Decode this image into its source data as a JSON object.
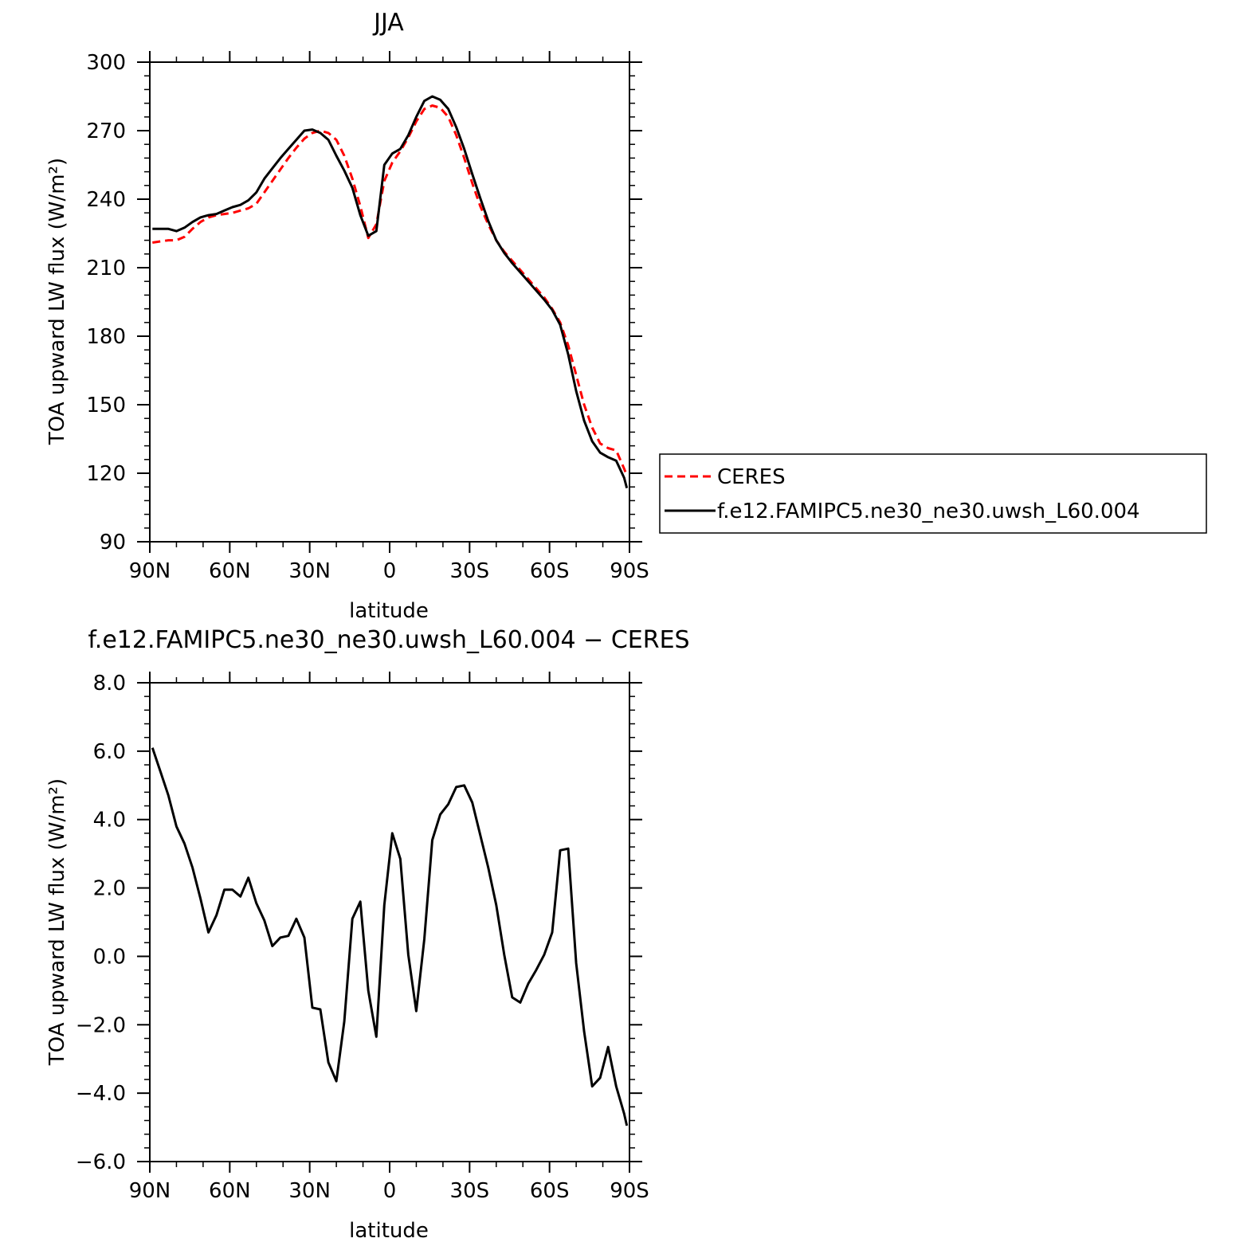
{
  "colors": {
    "ceres": "#ff0000",
    "model": "#000000",
    "axis": "#000000"
  },
  "chart_data": [
    {
      "type": "line",
      "title": "JJA",
      "xlabel": "latitude",
      "ylabel": "TOA upward LW flux (W/m²)",
      "x_range": [
        90,
        -90
      ],
      "xticks": [
        90,
        60,
        30,
        0,
        -30,
        -60,
        -90
      ],
      "xtick_labels": [
        "90N",
        "60N",
        "30N",
        "0",
        "30S",
        "60S",
        "90S"
      ],
      "ylim": [
        90,
        300
      ],
      "yticks": [
        90,
        120,
        150,
        180,
        210,
        240,
        270,
        300
      ],
      "ytick_labels": [
        "90",
        "120",
        "150",
        "180",
        "210",
        "240",
        "270",
        "300"
      ],
      "legend": {
        "position": "right",
        "entries": [
          "CERES",
          "f.e12.FAMIPC5.ne30_ne30.uwsh_L60.004"
        ]
      },
      "series": [
        {
          "name": "CERES",
          "style": "dashed",
          "x": [
            89,
            86,
            83,
            80,
            77,
            74,
            71,
            68,
            65,
            62,
            59,
            56,
            53,
            50,
            47,
            44,
            41,
            38,
            35,
            32,
            29,
            26,
            23,
            20,
            17,
            14,
            11,
            8,
            5,
            2,
            -1,
            -4,
            -7,
            -10,
            -13,
            -16,
            -19,
            -22,
            -25,
            -28,
            -31,
            -34,
            -37,
            -40,
            -43,
            -46,
            -49,
            -52,
            -55,
            -58,
            -61,
            -64,
            -67,
            -70,
            -73,
            -76,
            -79,
            -82,
            -85,
            -88,
            -89
          ],
          "values": [
            221,
            221.5,
            222,
            222,
            223.5,
            227,
            230,
            232,
            233,
            233.5,
            234,
            235,
            236,
            238,
            243,
            248,
            253,
            258,
            262.5,
            266.5,
            269,
            270,
            269,
            266,
            259,
            249,
            237,
            223,
            229,
            248,
            256,
            261,
            267,
            274,
            279.5,
            281,
            280,
            276,
            268,
            258,
            247,
            237,
            229,
            222,
            217,
            213,
            209,
            205,
            201,
            197,
            192,
            186,
            176,
            163,
            150,
            140,
            133,
            131,
            130,
            122,
            119
          ]
        },
        {
          "name": "f.e12.FAMIPC5.ne30_ne30.uwsh_L60.004",
          "style": "solid",
          "x": [
            89,
            86,
            83,
            80,
            77,
            74,
            71,
            68,
            65,
            62,
            59,
            56,
            53,
            50,
            47,
            44,
            41,
            38,
            35,
            32,
            29,
            26,
            23,
            20,
            17,
            14,
            11,
            8,
            5,
            2,
            -1,
            -4,
            -7,
            -10,
            -13,
            -16,
            -19,
            -22,
            -25,
            -28,
            -31,
            -34,
            -37,
            -40,
            -43,
            -46,
            -49,
            -52,
            -55,
            -58,
            -61,
            -64,
            -67,
            -70,
            -73,
            -76,
            -79,
            -82,
            -85,
            -88,
            -89
          ],
          "values": [
            227,
            227,
            227,
            226,
            227.5,
            230,
            232,
            233,
            233.5,
            235,
            236.5,
            237.5,
            239.5,
            243,
            249,
            253.5,
            258,
            262,
            266,
            270,
            270.5,
            269,
            266,
            259,
            252.5,
            245,
            233,
            224,
            226,
            255,
            260,
            262,
            268,
            276,
            283,
            285,
            283.5,
            279.5,
            271.5,
            262,
            251,
            240.5,
            230.5,
            222,
            216.5,
            212,
            208,
            204,
            200,
            196,
            191.5,
            185,
            172,
            156,
            143,
            134,
            129,
            127,
            125.5,
            118,
            113.5
          ]
        }
      ]
    },
    {
      "type": "line",
      "title": "f.e12.FAMIPC5.ne30_ne30.uwsh_L60.004 − CERES",
      "xlabel": "latitude",
      "ylabel": "TOA upward LW flux (W/m²)",
      "x_range": [
        90,
        -90
      ],
      "xticks": [
        90,
        60,
        30,
        0,
        -30,
        -60,
        -90
      ],
      "xtick_labels": [
        "90N",
        "60N",
        "30N",
        "0",
        "30S",
        "60S",
        "90S"
      ],
      "ylim": [
        -6,
        8
      ],
      "yticks": [
        -6,
        -4,
        -2,
        0,
        2,
        4,
        6,
        8
      ],
      "ytick_labels": [
        "−6.0",
        "−4.0",
        "−2.0",
        "0.0",
        "2.0",
        "4.0",
        "6.0",
        "8.0"
      ],
      "series": [
        {
          "style": "solid",
          "x": [
            89,
            86,
            83,
            80,
            77,
            74,
            71,
            68,
            65,
            62,
            59,
            56,
            53,
            50,
            47,
            44,
            41,
            38,
            35,
            32,
            29,
            26,
            23,
            20,
            17,
            14,
            11,
            8,
            5,
            2,
            -1,
            -4,
            -7,
            -10,
            -13,
            -16,
            -19,
            -22,
            -25,
            -28,
            -31,
            -34,
            -37,
            -40,
            -43,
            -46,
            -49,
            -52,
            -55,
            -58,
            -61,
            -64,
            -67,
            -70,
            -73,
            -76,
            -79,
            -82,
            -85,
            -88,
            -89
          ],
          "values": [
            6.1,
            5.4,
            4.7,
            3.8,
            3.3,
            2.6,
            1.7,
            0.7,
            1.2,
            1.95,
            1.95,
            1.75,
            2.3,
            1.55,
            1.05,
            0.3,
            0.55,
            0.6,
            1.1,
            0.55,
            -1.5,
            -1.55,
            -3.1,
            -3.65,
            -1.9,
            1.1,
            1.6,
            -1.0,
            -2.35,
            1.5,
            3.6,
            2.85,
            0.05,
            -1.6,
            0.5,
            3.4,
            4.15,
            4.45,
            4.95,
            5.0,
            4.5,
            3.55,
            2.6,
            1.5,
            0.05,
            -1.2,
            -1.35,
            -0.8,
            -0.4,
            0.05,
            0.7,
            3.1,
            3.15,
            -0.2,
            -2.2,
            -3.8,
            -3.55,
            -2.65,
            -3.8,
            -4.6,
            -4.95
          ]
        }
      ]
    }
  ]
}
